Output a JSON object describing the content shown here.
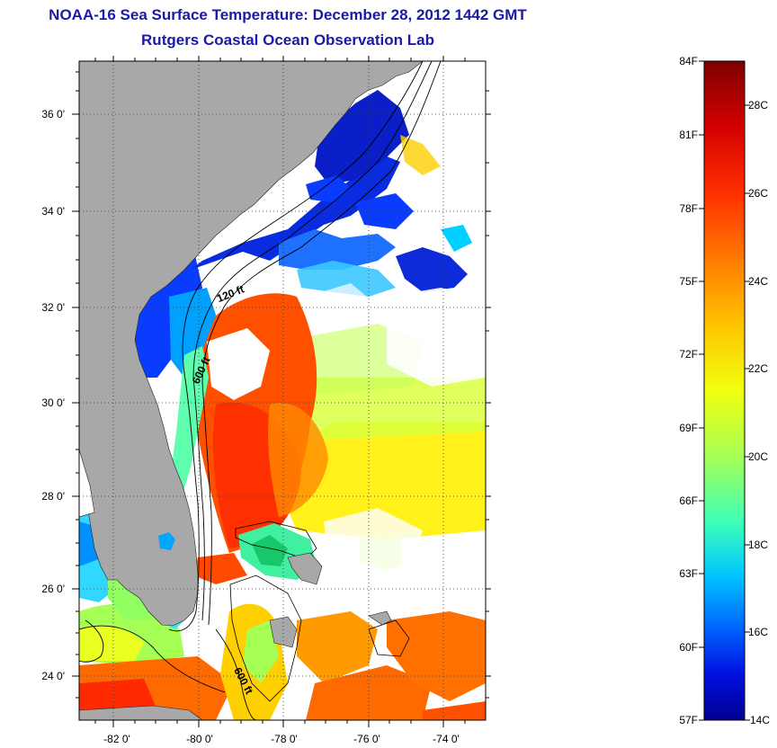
{
  "title": "NOAA-16 Sea Surface Temperature:  December 28, 2012 1442 GMT",
  "subtitle": "Rutgers Coastal Ocean Observation Lab",
  "map": {
    "lat_labels": [
      "36 0'",
      "34 0'",
      "32 0'",
      "30 0'",
      "28 0'",
      "26 0'",
      "24 0'"
    ],
    "lon_labels": [
      "-82 0'",
      "-80 0'",
      "-78 0'",
      "-76 0'",
      "-74 0'"
    ],
    "contours": [
      "120 ft",
      "600 ft",
      "600 ft"
    ],
    "colors": {
      "land": "#a8a8a8",
      "cloud": "#ffffff"
    }
  },
  "colorbar": {
    "fahrenheit_labels": [
      "84F",
      "81F",
      "78F",
      "75F",
      "72F",
      "69F",
      "66F",
      "63F",
      "60F",
      "57F"
    ],
    "celsius_labels": [
      "28C",
      "26C",
      "24C",
      "22C",
      "20C",
      "18C",
      "16C",
      "14C"
    ],
    "colors": [
      "#7f0000",
      "#d40000",
      "#ff3000",
      "#ff7a00",
      "#ffc400",
      "#f2ff10",
      "#a6ff55",
      "#3dffb8",
      "#00c6ff",
      "#0064ff",
      "#0010e0",
      "#00008f"
    ]
  }
}
